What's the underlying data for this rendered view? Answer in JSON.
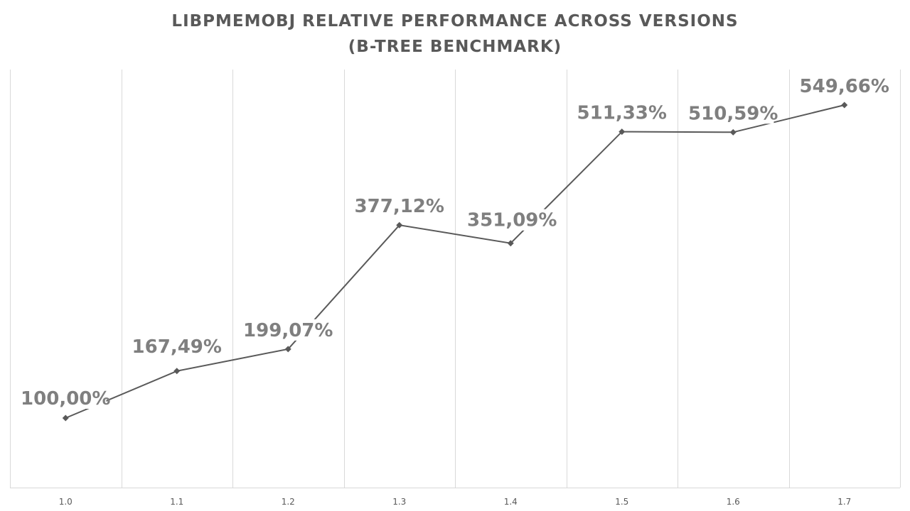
{
  "title": {
    "line1": "LIBPMEMOBJ RELATIVE PERFORMANCE ACROSS VERSIONS",
    "line2": "(B-TREE BENCHMARK)"
  },
  "colors": {
    "line": "#595959",
    "label": "#7f7f7f",
    "grid": "#d9d9d9",
    "title": "#595959"
  },
  "chart_data": {
    "type": "line",
    "title": "LIBPMEMOBJ RELATIVE PERFORMANCE ACROSS VERSIONS (B-TREE BENCHMARK)",
    "categories": [
      "1.0",
      "1.1",
      "1.2",
      "1.3",
      "1.4",
      "1.5",
      "1.6",
      "1.7"
    ],
    "series": [
      {
        "values": [
          100.0,
          167.49,
          199.07,
          377.12,
          351.09,
          511.33,
          510.59,
          549.66
        ],
        "labels": [
          "100,00%",
          "167,49%",
          "199,07%",
          "377,12%",
          "351,09%",
          "511,33%",
          "510,59%",
          "549,66%"
        ]
      }
    ],
    "xlabel": "",
    "ylabel": "",
    "ylim": [
      0,
      600
    ],
    "grid": "vertical",
    "legend": "none",
    "marker": "diamond"
  }
}
